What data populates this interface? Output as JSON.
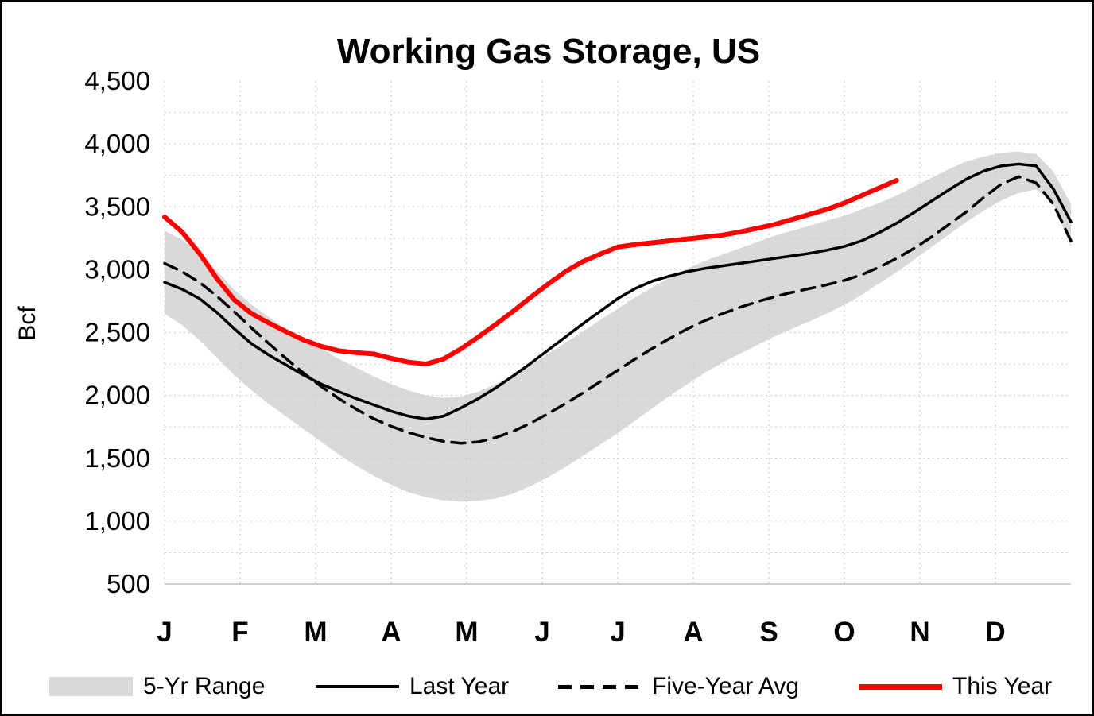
{
  "chart_data": {
    "type": "line",
    "title": "Working Gas Storage, US",
    "ylabel": "Bcf",
    "xlabel": "",
    "units": "Bcf",
    "ylim": [
      500,
      4500
    ],
    "y_ticks": [
      500,
      1000,
      1500,
      2000,
      2500,
      3000,
      3500,
      4000,
      4500
    ],
    "y_tick_labels": [
      "500",
      "1,000",
      "1,500",
      "2,000",
      "2,500",
      "3,000",
      "3,500",
      "4,000",
      "4,500"
    ],
    "minor_grid_step": 250,
    "grid": true,
    "legend_position": "bottom",
    "x_unit": "week",
    "x_range_weeks": [
      0,
      52
    ],
    "month_labels": [
      "J",
      "F",
      "M",
      "A",
      "M",
      "J",
      "J",
      "A",
      "S",
      "O",
      "N",
      "D"
    ],
    "band": {
      "name": "5-Yr Range",
      "color": "#d9d9d9",
      "x_start_week": 0,
      "upper": [
        3310,
        3240,
        3130,
        2990,
        2840,
        2720,
        2620,
        2530,
        2450,
        2370,
        2290,
        2220,
        2150,
        2090,
        2040,
        2000,
        1980,
        1990,
        2030,
        2090,
        2160,
        2240,
        2330,
        2420,
        2510,
        2600,
        2690,
        2780,
        2860,
        2940,
        3010,
        3070,
        3120,
        3170,
        3220,
        3270,
        3310,
        3350,
        3390,
        3430,
        3480,
        3530,
        3590,
        3660,
        3730,
        3800,
        3860,
        3900,
        3930,
        3940,
        3920,
        3780,
        3520
      ],
      "lower": [
        2650,
        2560,
        2440,
        2300,
        2160,
        2040,
        1930,
        1830,
        1730,
        1630,
        1530,
        1440,
        1360,
        1290,
        1230,
        1190,
        1165,
        1155,
        1160,
        1180,
        1220,
        1280,
        1350,
        1430,
        1520,
        1610,
        1700,
        1800,
        1900,
        2000,
        2090,
        2180,
        2260,
        2330,
        2400,
        2470,
        2530,
        2590,
        2650,
        2720,
        2800,
        2890,
        2980,
        3080,
        3180,
        3280,
        3380,
        3470,
        3550,
        3610,
        3640,
        3520,
        3180
      ]
    },
    "series": [
      {
        "name": "Last Year",
        "color": "#000000",
        "dash": "solid",
        "width": 3.5,
        "x_start_week": 0,
        "values": [
          2900,
          2845,
          2770,
          2660,
          2530,
          2410,
          2320,
          2240,
          2160,
          2090,
          2030,
          1975,
          1925,
          1875,
          1835,
          1812,
          1835,
          1900,
          1975,
          2060,
          2155,
          2255,
          2360,
          2465,
          2570,
          2670,
          2770,
          2850,
          2910,
          2950,
          2985,
          3010,
          3030,
          3050,
          3070,
          3090,
          3110,
          3130,
          3155,
          3185,
          3230,
          3295,
          3370,
          3455,
          3545,
          3635,
          3720,
          3785,
          3825,
          3840,
          3825,
          3640,
          3380
        ]
      },
      {
        "name": "Five-Year Avg",
        "color": "#000000",
        "dash": "dashed",
        "width": 3.5,
        "x_start_week": 0,
        "values": [
          3050,
          2985,
          2900,
          2790,
          2665,
          2535,
          2410,
          2290,
          2175,
          2070,
          1975,
          1890,
          1815,
          1755,
          1705,
          1665,
          1635,
          1620,
          1630,
          1665,
          1715,
          1780,
          1855,
          1935,
          2020,
          2110,
          2200,
          2290,
          2375,
          2455,
          2530,
          2595,
          2650,
          2700,
          2745,
          2785,
          2820,
          2850,
          2880,
          2915,
          2960,
          3020,
          3090,
          3170,
          3260,
          3360,
          3460,
          3575,
          3680,
          3740,
          3690,
          3520,
          3230
        ]
      },
      {
        "name": "This Year",
        "color": "#fe0000",
        "dash": "solid",
        "width": 6,
        "x_start_week": 0,
        "values": [
          3420,
          3300,
          3130,
          2930,
          2760,
          2650,
          2575,
          2505,
          2440,
          2390,
          2355,
          2340,
          2330,
          2295,
          2265,
          2250,
          2290,
          2370,
          2465,
          2565,
          2670,
          2780,
          2885,
          2985,
          3065,
          3125,
          3180,
          3200,
          3215,
          3230,
          3245,
          3260,
          3275,
          3300,
          3330,
          3360,
          3400,
          3440,
          3480,
          3530,
          3590,
          3650,
          3710
        ]
      }
    ],
    "legend": [
      "5-Yr Range",
      "Last Year",
      "Five-Year Avg",
      "This Year"
    ]
  }
}
